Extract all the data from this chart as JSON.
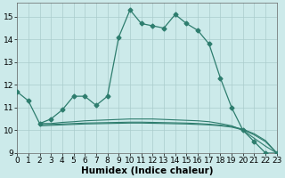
{
  "line1_x": [
    0,
    1,
    2,
    3,
    4,
    5,
    6,
    7,
    8,
    9,
    10,
    11,
    12,
    13,
    14,
    15,
    16,
    17,
    18,
    19,
    20,
    21,
    22,
    23
  ],
  "line1_y": [
    11.7,
    11.3,
    10.3,
    10.5,
    10.9,
    11.5,
    11.5,
    11.1,
    11.5,
    14.1,
    15.3,
    14.7,
    14.6,
    14.5,
    15.1,
    14.7,
    14.4,
    13.8,
    12.3,
    11.0,
    10.0,
    9.5,
    9.0,
    9.0
  ],
  "line2_x": [
    2,
    3,
    4,
    5,
    6,
    7,
    8,
    9,
    10,
    11,
    12,
    13,
    14,
    15,
    16,
    17,
    18,
    19,
    20,
    21,
    22,
    23
  ],
  "line2_y": [
    10.3,
    10.3,
    10.35,
    10.38,
    10.42,
    10.44,
    10.46,
    10.48,
    10.5,
    10.5,
    10.5,
    10.48,
    10.46,
    10.44,
    10.42,
    10.38,
    10.3,
    10.2,
    10.0,
    9.65,
    9.3,
    9.0
  ],
  "line3_x": [
    2,
    3,
    4,
    5,
    6,
    7,
    8,
    9,
    10,
    11,
    12,
    13,
    14,
    15,
    16,
    17,
    18,
    19,
    20,
    21,
    22,
    23
  ],
  "line3_y": [
    10.25,
    10.26,
    10.28,
    10.3,
    10.32,
    10.33,
    10.34,
    10.35,
    10.36,
    10.36,
    10.35,
    10.34,
    10.33,
    10.32,
    10.3,
    10.27,
    10.23,
    10.17,
    10.05,
    9.85,
    9.55,
    9.0
  ],
  "line4_x": [
    2,
    3,
    4,
    5,
    6,
    7,
    8,
    9,
    10,
    11,
    12,
    13,
    14,
    15,
    16,
    17,
    18,
    19,
    20,
    21,
    22,
    23
  ],
  "line4_y": [
    10.2,
    10.22,
    10.24,
    10.26,
    10.28,
    10.29,
    10.3,
    10.31,
    10.32,
    10.32,
    10.31,
    10.3,
    10.29,
    10.28,
    10.26,
    10.24,
    10.2,
    10.14,
    10.02,
    9.8,
    9.5,
    9.0
  ],
  "line_color": "#2e7d6e",
  "bg_color": "#cceaea",
  "grid_color": "#aacccc",
  "xlabel": "Humidex (Indice chaleur)",
  "xlim": [
    0,
    23
  ],
  "ylim": [
    9,
    15.6
  ],
  "yticks": [
    9,
    10,
    11,
    12,
    13,
    14,
    15
  ],
  "xticks": [
    0,
    1,
    2,
    3,
    4,
    5,
    6,
    7,
    8,
    9,
    10,
    11,
    12,
    13,
    14,
    15,
    16,
    17,
    18,
    19,
    20,
    21,
    22,
    23
  ],
  "tick_fontsize": 6.5,
  "xlabel_fontsize": 7.5,
  "marker": "D",
  "markersize": 2.5
}
